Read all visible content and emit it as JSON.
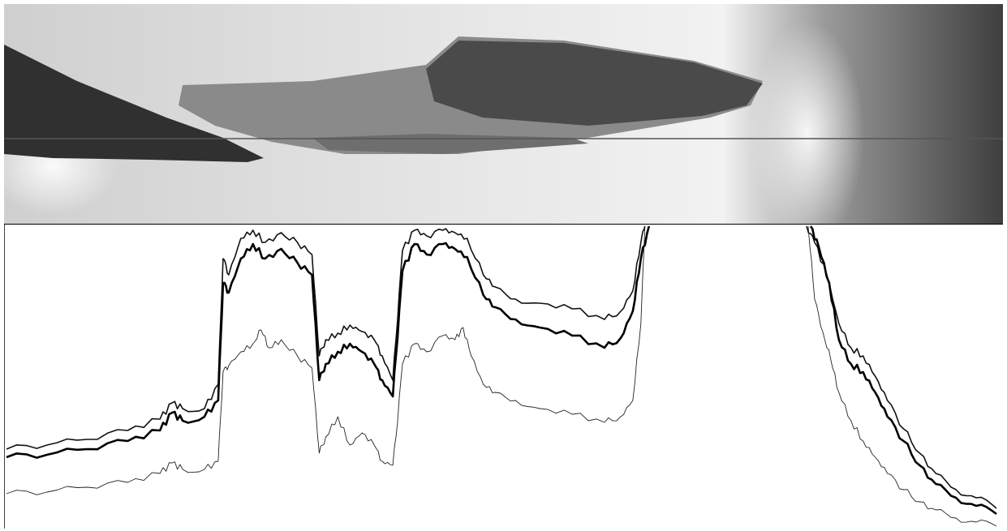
{
  "figure": {
    "description_free": true
  },
  "photo": {
    "style": "grayscale",
    "has_reference_line": true,
    "colors": {
      "dark": "#2b2b2b",
      "mid": "#7a7a7a",
      "light": "#d9d9d9",
      "bright": "#f2f2f2",
      "right_background": "#454545"
    }
  },
  "chart_data": {
    "type": "line",
    "grid": false,
    "legend": "none",
    "xlim": [
      0,
      1230
    ],
    "ylim": [
      0,
      370
    ],
    "axes_shown": false,
    "series": [
      {
        "style": "medium",
        "color": "#111111",
        "points": [
          [
            0,
            275
          ],
          [
            50,
            270
          ],
          [
            100,
            263
          ],
          [
            150,
            252
          ],
          [
            190,
            238
          ],
          [
            205,
            218
          ],
          [
            218,
            225
          ],
          [
            245,
            225
          ],
          [
            262,
            195
          ],
          [
            268,
            40
          ],
          [
            275,
            60
          ],
          [
            290,
            15
          ],
          [
            305,
            5
          ],
          [
            320,
            20
          ],
          [
            340,
            8
          ],
          [
            360,
            20
          ],
          [
            378,
            35
          ],
          [
            387,
            160
          ],
          [
            395,
            140
          ],
          [
            410,
            132
          ],
          [
            425,
            122
          ],
          [
            440,
            130
          ],
          [
            455,
            140
          ],
          [
            465,
            160
          ],
          [
            478,
            190
          ],
          [
            482,
            140
          ],
          [
            490,
            30
          ],
          [
            505,
            5
          ],
          [
            520,
            12
          ],
          [
            540,
            5
          ],
          [
            555,
            8
          ],
          [
            570,
            15
          ],
          [
            590,
            60
          ],
          [
            605,
            75
          ],
          [
            630,
            90
          ],
          [
            660,
            95
          ],
          [
            700,
            102
          ],
          [
            740,
            115
          ],
          [
            760,
            105
          ],
          [
            775,
            80
          ],
          [
            785,
            20
          ],
          [
            790,
            0
          ]
        ]
      },
      {
        "style": "thick",
        "color": "#000000",
        "points": [
          [
            0,
            285
          ],
          [
            50,
            282
          ],
          [
            100,
            275
          ],
          [
            150,
            265
          ],
          [
            190,
            252
          ],
          [
            205,
            230
          ],
          [
            218,
            240
          ],
          [
            245,
            235
          ],
          [
            262,
            215
          ],
          [
            268,
            70
          ],
          [
            275,
            82
          ],
          [
            290,
            40
          ],
          [
            305,
            22
          ],
          [
            320,
            40
          ],
          [
            340,
            28
          ],
          [
            360,
            45
          ],
          [
            378,
            60
          ],
          [
            387,
            190
          ],
          [
            395,
            170
          ],
          [
            410,
            155
          ],
          [
            425,
            145
          ],
          [
            440,
            155
          ],
          [
            455,
            170
          ],
          [
            465,
            190
          ],
          [
            478,
            210
          ],
          [
            482,
            160
          ],
          [
            490,
            55
          ],
          [
            505,
            22
          ],
          [
            520,
            35
          ],
          [
            540,
            22
          ],
          [
            555,
            28
          ],
          [
            570,
            38
          ],
          [
            590,
            85
          ],
          [
            605,
            100
          ],
          [
            630,
            115
          ],
          [
            660,
            125
          ],
          [
            700,
            135
          ],
          [
            740,
            150
          ],
          [
            760,
            138
          ],
          [
            775,
            105
          ],
          [
            785,
            40
          ],
          [
            795,
            0
          ]
        ]
      },
      {
        "style": "thin",
        "color": "#222222",
        "points": [
          [
            0,
            330
          ],
          [
            50,
            328
          ],
          [
            100,
            322
          ],
          [
            150,
            316
          ],
          [
            190,
            305
          ],
          [
            205,
            292
          ],
          [
            218,
            300
          ],
          [
            245,
            300
          ],
          [
            262,
            290
          ],
          [
            268,
            180
          ],
          [
            275,
            172
          ],
          [
            290,
            155
          ],
          [
            305,
            145
          ],
          [
            315,
            128
          ],
          [
            325,
            150
          ],
          [
            340,
            140
          ],
          [
            360,
            160
          ],
          [
            378,
            175
          ],
          [
            387,
            280
          ],
          [
            395,
            260
          ],
          [
            410,
            235
          ],
          [
            425,
            270
          ],
          [
            440,
            255
          ],
          [
            455,
            270
          ],
          [
            465,
            290
          ],
          [
            478,
            295
          ],
          [
            482,
            260
          ],
          [
            490,
            170
          ],
          [
            505,
            145
          ],
          [
            520,
            155
          ],
          [
            540,
            135
          ],
          [
            555,
            140
          ],
          [
            565,
            125
          ],
          [
            575,
            160
          ],
          [
            590,
            195
          ],
          [
            605,
            205
          ],
          [
            630,
            215
          ],
          [
            660,
            225
          ],
          [
            700,
            232
          ],
          [
            740,
            242
          ],
          [
            760,
            235
          ],
          [
            775,
            215
          ],
          [
            785,
            120
          ],
          [
            790,
            0
          ]
        ]
      },
      {
        "style": "medium",
        "color": "#111111",
        "points": [
          [
            990,
            0
          ],
          [
            1000,
            20
          ],
          [
            1015,
            60
          ],
          [
            1030,
            120
          ],
          [
            1045,
            150
          ],
          [
            1060,
            160
          ],
          [
            1075,
            185
          ],
          [
            1090,
            215
          ],
          [
            1110,
            250
          ],
          [
            1130,
            280
          ],
          [
            1150,
            305
          ],
          [
            1175,
            325
          ],
          [
            1200,
            335
          ],
          [
            1225,
            348
          ]
        ]
      },
      {
        "style": "thick",
        "color": "#000000",
        "points": [
          [
            995,
            0
          ],
          [
            1005,
            25
          ],
          [
            1018,
            70
          ],
          [
            1030,
            140
          ],
          [
            1045,
            170
          ],
          [
            1060,
            180
          ],
          [
            1075,
            205
          ],
          [
            1090,
            235
          ],
          [
            1110,
            265
          ],
          [
            1130,
            295
          ],
          [
            1150,
            318
          ],
          [
            1175,
            335
          ],
          [
            1200,
            345
          ],
          [
            1225,
            355
          ]
        ]
      },
      {
        "style": "thin",
        "color": "#222222",
        "points": [
          [
            992,
            0
          ],
          [
            1000,
            90
          ],
          [
            1010,
            130
          ],
          [
            1020,
            165
          ],
          [
            1030,
            205
          ],
          [
            1045,
            240
          ],
          [
            1060,
            265
          ],
          [
            1075,
            285
          ],
          [
            1090,
            305
          ],
          [
            1110,
            325
          ],
          [
            1130,
            340
          ],
          [
            1150,
            350
          ],
          [
            1175,
            360
          ],
          [
            1200,
            365
          ],
          [
            1225,
            370
          ]
        ]
      }
    ]
  }
}
